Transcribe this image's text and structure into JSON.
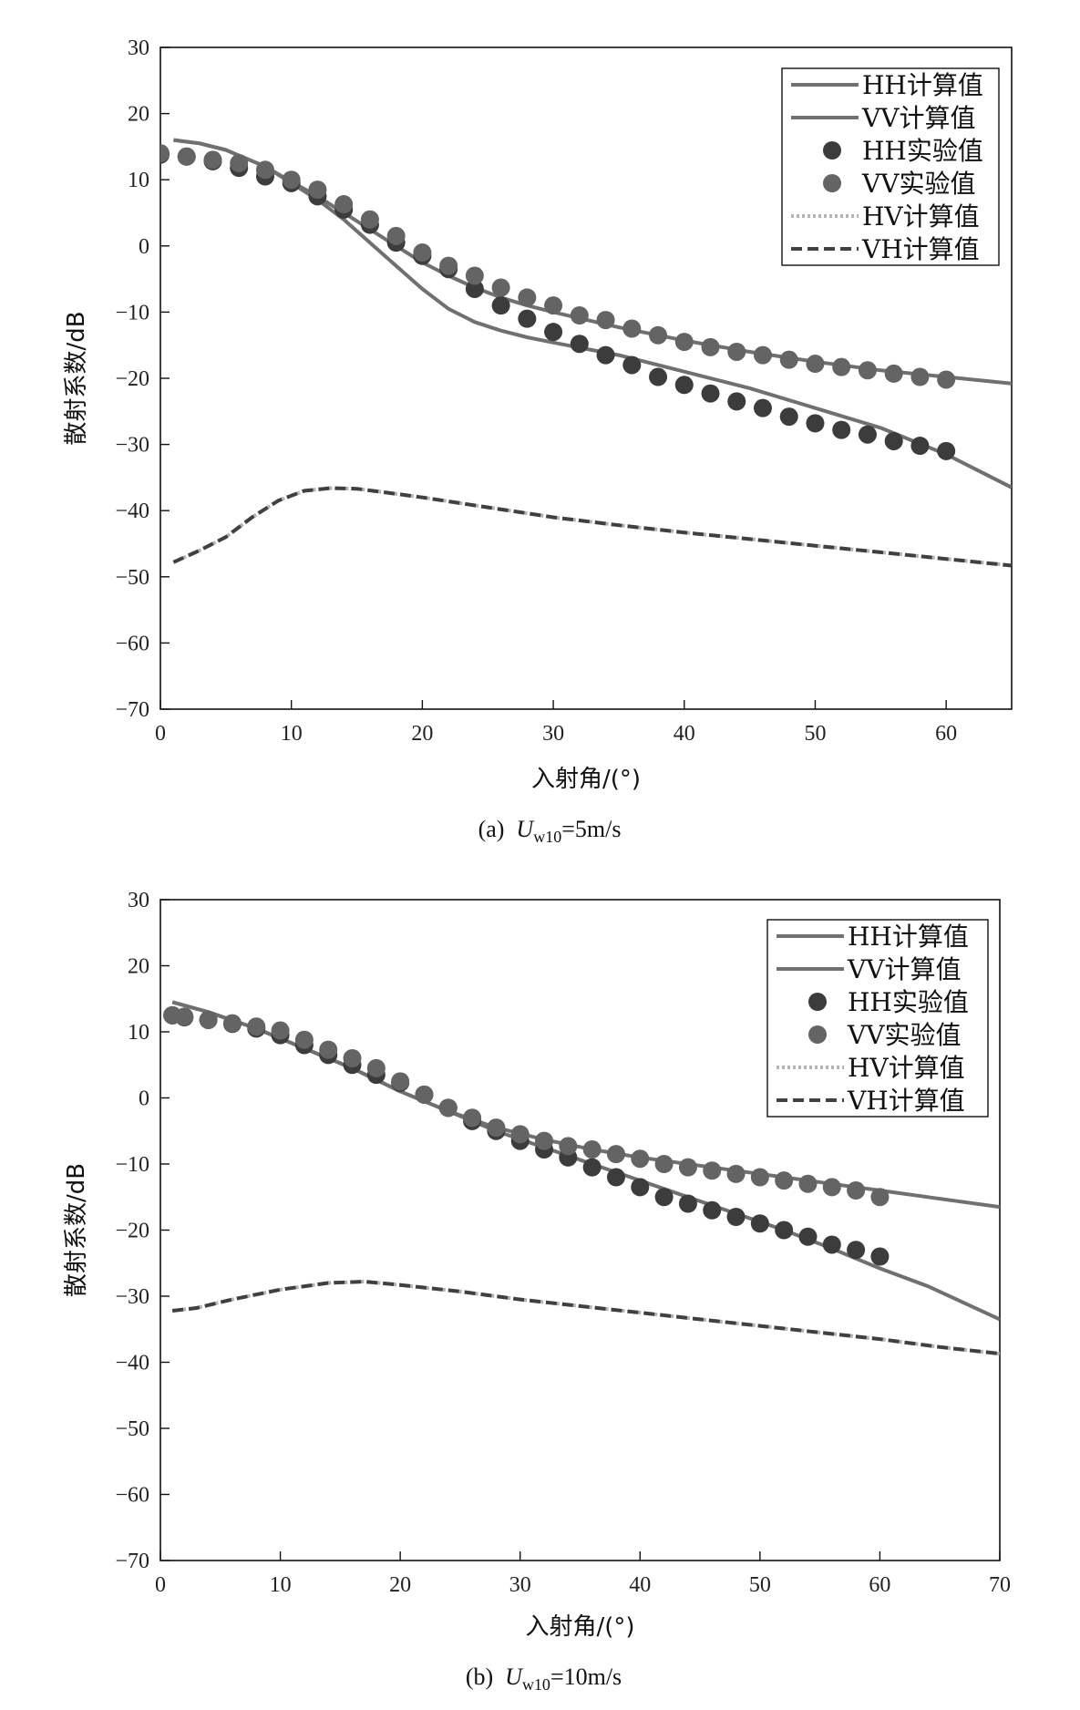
{
  "chart_data": [
    {
      "type": "line",
      "caption": {
        "prefix": "(a)",
        "var": "U",
        "sub": "w10",
        "suffix": "=5m/s"
      },
      "xlabel": "入射角/(°)",
      "ylabel": "散射系数/dB",
      "xlim": [
        0,
        65
      ],
      "ylim": [
        -70,
        30
      ],
      "xticks": [
        0,
        10,
        20,
        30,
        40,
        50,
        60
      ],
      "yticks": [
        30,
        20,
        10,
        0,
        -10,
        -20,
        -30,
        -40,
        -50,
        -60,
        -70
      ],
      "legend_position": "top-right",
      "legend": [
        {
          "label": "HH计算值",
          "kind": "line",
          "color": "#707070",
          "dash": ""
        },
        {
          "label": "VV计算值",
          "kind": "line",
          "color": "#707070",
          "dash": ""
        },
        {
          "label": "HH实验值",
          "kind": "marker",
          "color": "#3c3c3c"
        },
        {
          "label": "VV实验值",
          "kind": "marker",
          "color": "#646464"
        },
        {
          "label": "HV计算值",
          "kind": "line",
          "color": "#b4b4b4",
          "dash": "3,3"
        },
        {
          "label": "VH计算值",
          "kind": "line",
          "color": "#404040",
          "dash": "12,6"
        }
      ],
      "series": [
        {
          "name": "HH计算值",
          "kind": "line",
          "color": "#707070",
          "dash": "",
          "x": [
            1,
            3,
            5,
            8,
            10,
            12,
            14,
            16,
            18,
            20,
            22,
            24,
            26,
            28,
            30,
            35,
            40,
            45,
            50,
            55,
            60,
            65
          ],
          "y": [
            16,
            15.5,
            14.5,
            12,
            9.5,
            7,
            4,
            0.5,
            -3,
            -6.5,
            -9.5,
            -11.5,
            -12.8,
            -13.8,
            -14.6,
            -16.5,
            -19,
            -21.5,
            -24.5,
            -27.5,
            -31.5,
            -36.5
          ]
        },
        {
          "name": "VV计算值",
          "kind": "line",
          "color": "#707070",
          "dash": "",
          "x": [
            1,
            3,
            5,
            8,
            10,
            12,
            14,
            16,
            18,
            20,
            22,
            24,
            26,
            28,
            30,
            35,
            40,
            45,
            50,
            55,
            60,
            65
          ],
          "y": [
            16,
            15.5,
            14.5,
            12,
            9.7,
            7.5,
            5,
            2.5,
            0,
            -2.5,
            -4.5,
            -6.3,
            -7.8,
            -9,
            -10,
            -12.3,
            -14.3,
            -16,
            -17.5,
            -18.8,
            -19.8,
            -20.8
          ]
        },
        {
          "name": "HH实验值",
          "kind": "marker",
          "color": "#3c3c3c",
          "x": [
            0,
            2,
            4,
            6,
            8,
            10,
            12,
            14,
            16,
            18,
            20,
            22,
            24,
            26,
            28,
            30,
            32,
            34,
            36,
            38,
            40,
            42,
            44,
            46,
            48,
            50,
            52,
            54,
            56,
            58,
            60
          ],
          "y": [
            13.8,
            13.5,
            12.8,
            11.8,
            10.5,
            9.5,
            7.5,
            5.5,
            3.2,
            0.5,
            -1.5,
            -3.5,
            -6.5,
            -9,
            -11,
            -13,
            -14.8,
            -16.5,
            -18,
            -19.8,
            -21,
            -22.3,
            -23.5,
            -24.5,
            -25.8,
            -26.8,
            -27.8,
            -28.5,
            -29.5,
            -30.2,
            -31
          ]
        },
        {
          "name": "VV实验值",
          "kind": "marker",
          "color": "#646464",
          "x": [
            0,
            2,
            4,
            6,
            8,
            10,
            12,
            14,
            16,
            18,
            20,
            22,
            24,
            26,
            28,
            30,
            32,
            34,
            36,
            38,
            40,
            42,
            44,
            46,
            48,
            50,
            52,
            54,
            56,
            58,
            60
          ],
          "y": [
            14,
            13.5,
            13,
            12.5,
            11.5,
            10,
            8.5,
            6.3,
            4,
            1.5,
            -1,
            -3,
            -4.5,
            -6.3,
            -7.8,
            -9,
            -10.5,
            -11.2,
            -12.5,
            -13.5,
            -14.5,
            -15.3,
            -16,
            -16.5,
            -17.2,
            -17.8,
            -18.3,
            -18.8,
            -19.3,
            -19.8,
            -20.2
          ]
        },
        {
          "name": "HV计算值",
          "kind": "line",
          "color": "#b4b4b4",
          "dash": "3,3",
          "x": [
            1,
            3,
            5,
            7,
            9,
            11,
            13,
            15,
            17,
            20,
            25,
            30,
            35,
            40,
            45,
            50,
            55,
            60,
            65
          ],
          "y": [
            -47.8,
            -46,
            -44,
            -41,
            -38.5,
            -37,
            -36.6,
            -36.7,
            -37.2,
            -38,
            -39.5,
            -41,
            -42.2,
            -43.3,
            -44.3,
            -45.3,
            -46.3,
            -47.3,
            -48.3
          ]
        },
        {
          "name": "VH计算值",
          "kind": "line",
          "color": "#404040",
          "dash": "12,6",
          "x": [
            1,
            3,
            5,
            7,
            9,
            11,
            13,
            15,
            17,
            20,
            25,
            30,
            35,
            40,
            45,
            50,
            55,
            60,
            65
          ],
          "y": [
            -47.8,
            -46,
            -44,
            -41,
            -38.5,
            -37,
            -36.6,
            -36.7,
            -37.2,
            -38,
            -39.5,
            -41,
            -42.2,
            -43.3,
            -44.3,
            -45.3,
            -46.3,
            -47.3,
            -48.3
          ]
        }
      ]
    },
    {
      "type": "line",
      "caption": {
        "prefix": "(b)",
        "var": "U",
        "sub": "w10",
        "suffix": "=10m/s"
      },
      "xlabel": "入射角/(°)",
      "ylabel": "散射系数/dB",
      "xlim": [
        0,
        70
      ],
      "ylim": [
        -70,
        30
      ],
      "xticks": [
        0,
        10,
        20,
        30,
        40,
        50,
        60,
        70
      ],
      "yticks": [
        30,
        20,
        10,
        0,
        -10,
        -20,
        -30,
        -40,
        -50,
        -60,
        -70
      ],
      "legend_position": "top-right",
      "legend": [
        {
          "label": "HH计算值",
          "kind": "line",
          "color": "#707070",
          "dash": ""
        },
        {
          "label": "VV计算值",
          "kind": "line",
          "color": "#707070",
          "dash": ""
        },
        {
          "label": "HH实验值",
          "kind": "marker",
          "color": "#3c3c3c"
        },
        {
          "label": "VV实验值",
          "kind": "marker",
          "color": "#646464"
        },
        {
          "label": "HV计算值",
          "kind": "line",
          "color": "#b4b4b4",
          "dash": "3,3"
        },
        {
          "label": "VH计算值",
          "kind": "line",
          "color": "#404040",
          "dash": "12,6"
        }
      ],
      "series": [
        {
          "name": "HH计算值",
          "kind": "line",
          "color": "#707070",
          "dash": "",
          "x": [
            1,
            4,
            8,
            12,
            16,
            20,
            24,
            28,
            32,
            36,
            40,
            44,
            48,
            52,
            56,
            60,
            64,
            70
          ],
          "y": [
            14.5,
            13,
            10.5,
            7.5,
            4.5,
            1,
            -2,
            -5,
            -7.5,
            -10,
            -12.5,
            -15,
            -17.5,
            -20,
            -22.8,
            -25.8,
            -28.5,
            -33.5
          ]
        },
        {
          "name": "VV计算值",
          "kind": "line",
          "color": "#707070",
          "dash": "",
          "x": [
            1,
            4,
            8,
            12,
            16,
            20,
            24,
            28,
            32,
            36,
            40,
            44,
            48,
            52,
            56,
            60,
            64,
            70
          ],
          "y": [
            14.5,
            13,
            10.5,
            7.5,
            4.5,
            1,
            -2,
            -4.5,
            -6.3,
            -7.8,
            -9,
            -10,
            -11,
            -12,
            -13,
            -14,
            -15,
            -16.5
          ]
        },
        {
          "name": "HH实验值",
          "kind": "marker",
          "color": "#3c3c3c",
          "x": [
            1,
            2,
            4,
            6,
            8,
            10,
            12,
            14,
            16,
            18,
            20,
            22,
            24,
            26,
            28,
            30,
            32,
            34,
            36,
            38,
            40,
            42,
            44,
            46,
            48,
            50,
            52,
            54,
            56,
            58,
            60
          ],
          "y": [
            12.5,
            12.2,
            11.8,
            11.2,
            10.5,
            9.5,
            8,
            6.5,
            5,
            3.5,
            2.3,
            0.5,
            -1.5,
            -3.5,
            -5,
            -6.5,
            -7.8,
            -9,
            -10.5,
            -12,
            -13.5,
            -15,
            -16,
            -17,
            -18,
            -19,
            -20,
            -21,
            -22.2,
            -23,
            -24
          ]
        },
        {
          "name": "VV实验值",
          "kind": "marker",
          "color": "#646464",
          "x": [
            1,
            2,
            4,
            6,
            8,
            10,
            12,
            14,
            16,
            18,
            20,
            22,
            24,
            26,
            28,
            30,
            32,
            34,
            36,
            38,
            40,
            42,
            44,
            46,
            48,
            50,
            52,
            54,
            56,
            58,
            60
          ],
          "y": [
            12.5,
            12.3,
            11.8,
            11.3,
            10.8,
            10.2,
            8.8,
            7.3,
            6,
            4.5,
            2.5,
            0.5,
            -1.5,
            -3,
            -4.5,
            -5.5,
            -6.5,
            -7.3,
            -7.8,
            -8.5,
            -9.2,
            -10,
            -10.5,
            -11,
            -11.5,
            -12,
            -12.5,
            -13,
            -13.5,
            -14,
            -15
          ]
        },
        {
          "name": "HV计算值",
          "kind": "line",
          "color": "#b4b4b4",
          "dash": "3,3",
          "x": [
            1,
            3,
            6,
            10,
            14,
            17,
            20,
            25,
            30,
            35,
            40,
            45,
            50,
            55,
            60,
            65,
            70
          ],
          "y": [
            -32.2,
            -31.8,
            -30.5,
            -29,
            -28,
            -27.8,
            -28.3,
            -29.3,
            -30.5,
            -31.5,
            -32.5,
            -33.5,
            -34.5,
            -35.5,
            -36.5,
            -37.7,
            -38.7
          ]
        },
        {
          "name": "VH计算值",
          "kind": "line",
          "color": "#404040",
          "dash": "12,6",
          "x": [
            1,
            3,
            6,
            10,
            14,
            17,
            20,
            25,
            30,
            35,
            40,
            45,
            50,
            55,
            60,
            65,
            70
          ],
          "y": [
            -32.2,
            -31.8,
            -30.5,
            -29,
            -28,
            -27.8,
            -28.3,
            -29.3,
            -30.5,
            -31.5,
            -32.5,
            -33.5,
            -34.5,
            -35.5,
            -36.5,
            -37.7,
            -38.7
          ]
        }
      ]
    }
  ]
}
